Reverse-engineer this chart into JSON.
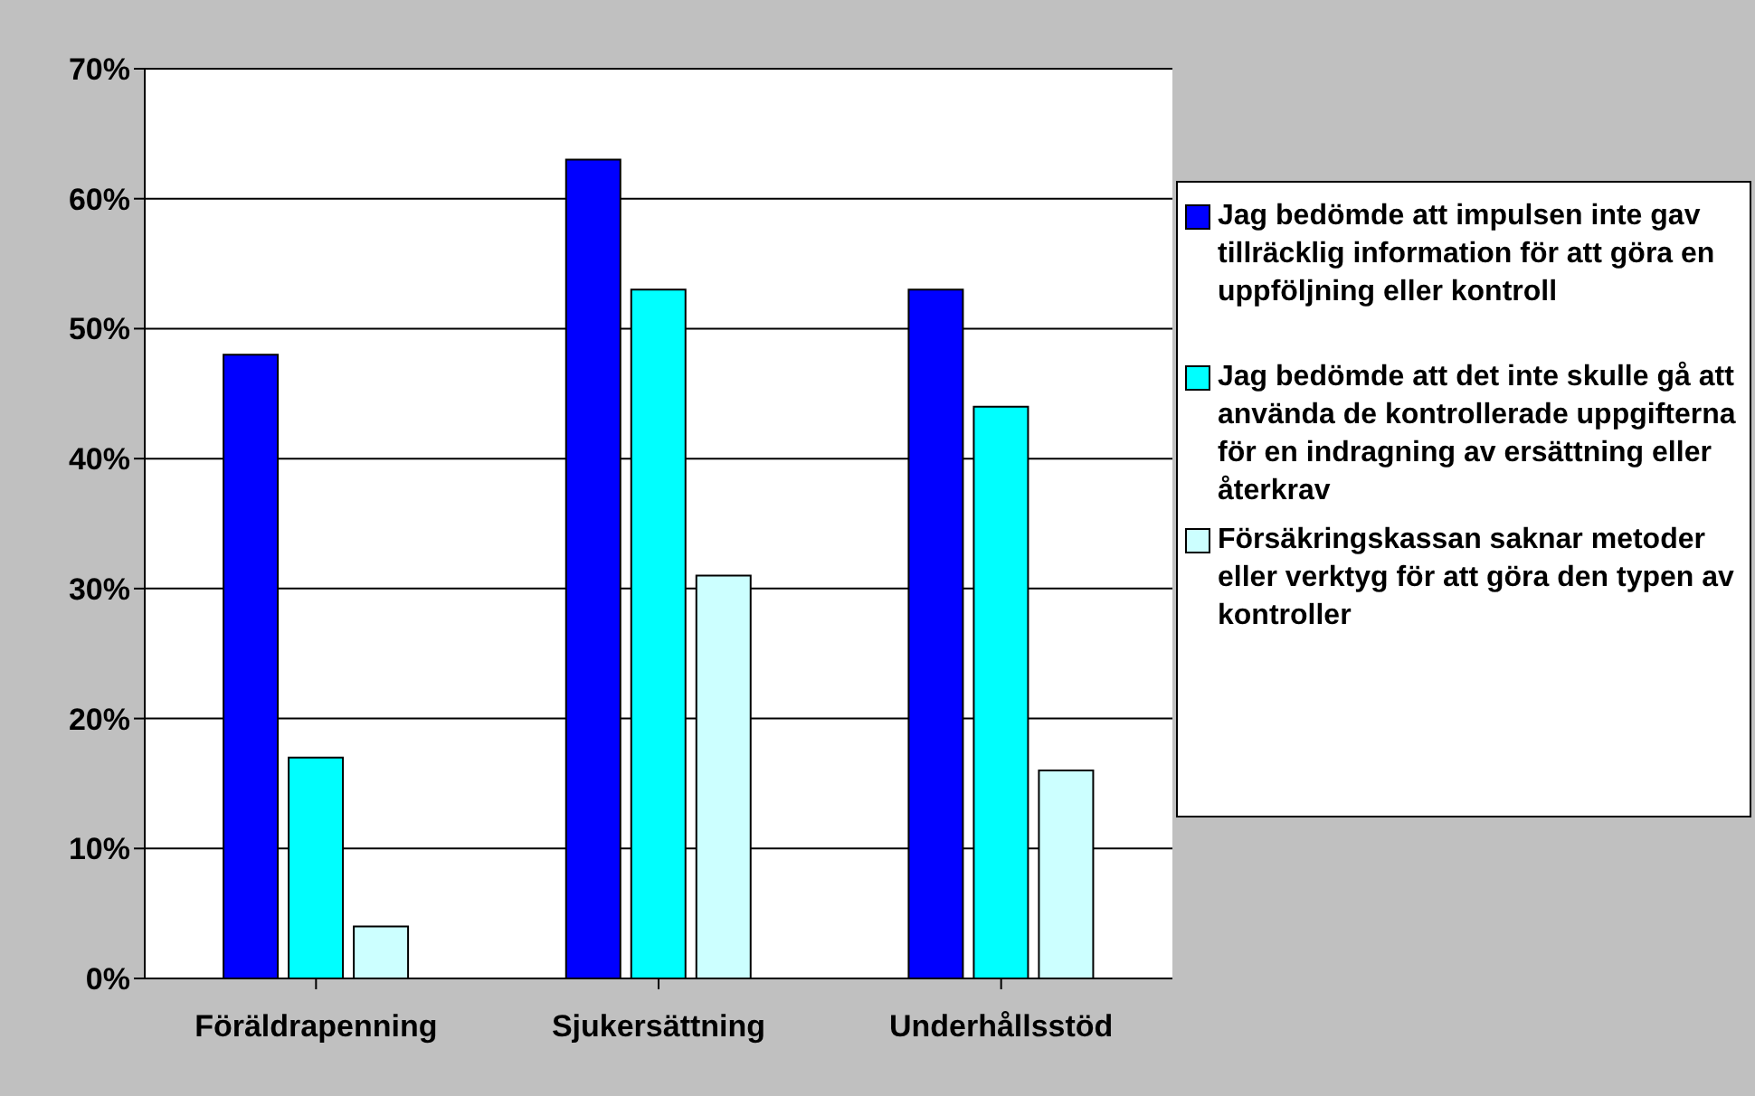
{
  "chart_data": {
    "type": "bar",
    "categories": [
      "Föräldrapenning",
      "Sjukersättning",
      "Underhållsstöd"
    ],
    "series": [
      {
        "name": "Jag bedömde att impulsen inte gav tillräcklig information för att göra en uppföljning eller kontroll",
        "color": "#0000ff",
        "values": [
          48,
          63,
          53
        ]
      },
      {
        "name": "Jag bedömde att det inte skulle gå att använda de kontrollerade uppgifterna för en indragning av ersättning eller återkrav",
        "color": "#00ffff",
        "values": [
          17,
          53,
          44
        ]
      },
      {
        "name": "Försäkringskassan saknar metoder eller verktyg för att göra den typen av kontroller",
        "color": "#ccffff",
        "values": [
          4,
          31,
          16
        ]
      }
    ],
    "ylim": [
      0,
      70
    ],
    "yticks": [
      {
        "value": 0,
        "label": "0%"
      },
      {
        "value": 10,
        "label": "10%"
      },
      {
        "value": 20,
        "label": "20%"
      },
      {
        "value": 30,
        "label": "30%"
      },
      {
        "value": 40,
        "label": "40%"
      },
      {
        "value": 50,
        "label": "50%"
      },
      {
        "value": 60,
        "label": "60%"
      },
      {
        "value": 70,
        "label": "70%"
      }
    ],
    "grid": "y",
    "legend": "right"
  }
}
